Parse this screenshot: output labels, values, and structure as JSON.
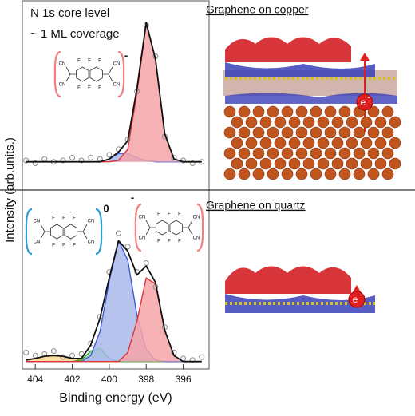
{
  "chart_data": [
    {
      "type": "line",
      "annotations": [
        "N 1s core level",
        "~ 1 ML coverage"
      ],
      "ylabel": "Intensity (arb.units.)",
      "x": [
        404.5,
        404,
        403.5,
        403,
        402.5,
        402,
        401.5,
        401,
        400.5,
        400,
        399.5,
        399,
        398.5,
        398,
        397.5,
        397,
        396.5,
        396,
        395.5,
        395
      ],
      "xlim": [
        404.7,
        394.6
      ],
      "ylim": [
        -0.2,
        1.15
      ],
      "series": [
        {
          "color": "#3b5bd9",
          "fill": "#a8b8ea",
          "values": [
            0,
            0,
            0,
            0,
            0,
            0,
            0,
            0,
            0,
            0.02,
            0.06,
            0.06,
            0.03,
            0.01,
            0,
            0,
            0,
            0,
            0,
            0
          ]
        },
        {
          "color": "#e0343a",
          "fill": "#f6a5a8",
          "values": [
            0,
            0,
            0,
            0,
            0,
            0,
            0,
            0,
            0,
            0,
            0.01,
            0.09,
            0.49,
            0.98,
            0.73,
            0.2,
            0.02,
            0,
            0,
            0
          ]
        },
        {
          "color": "#8a8a8a",
          "marker": "circle",
          "values": [
            0.01,
            -0.01,
            0.02,
            0,
            0.01,
            0.03,
            0.01,
            0.03,
            0.02,
            0.05,
            0.09,
            0.16,
            0.5,
            0.97,
            0.75,
            0.18,
            0.03,
            0.01,
            -0.01,
            0
          ]
        },
        {
          "color": "#111111",
          "values": [
            0,
            0,
            0,
            0,
            0,
            0,
            0,
            0,
            0,
            0.02,
            0.07,
            0.15,
            0.52,
            0.99,
            0.73,
            0.2,
            0.02,
            0,
            0,
            0
          ]
        }
      ]
    },
    {
      "type": "line",
      "xlabel": "Binding energy (eV)",
      "x": [
        404.5,
        404,
        403.5,
        403,
        402.5,
        402,
        401.5,
        401,
        400.5,
        400,
        399.5,
        399,
        398.5,
        398,
        397.5,
        397,
        396.5,
        396,
        395.5,
        395
      ],
      "xlim": [
        404.7,
        394.6
      ],
      "xticks": [
        404,
        402,
        400,
        398,
        396
      ],
      "ylim": [
        -0.05,
        1.15
      ],
      "series": [
        {
          "color": "#e0a020",
          "fill": "#f5d890",
          "values": [
            0.01,
            0.02,
            0.035,
            0.04,
            0.035,
            0.02,
            0.01,
            0,
            0,
            0,
            0,
            0,
            0,
            0,
            0,
            0,
            0,
            0,
            0,
            0
          ]
        },
        {
          "color": "#2eaa2e",
          "fill": "#a6dca6",
          "values": [
            0,
            0,
            0,
            0,
            0,
            0,
            0.01,
            0.07,
            0.09,
            0.02,
            0,
            0,
            0,
            0,
            0,
            0,
            0,
            0,
            0,
            0
          ]
        },
        {
          "color": "#3b5bd9",
          "fill": "#a8b8ea",
          "values": [
            0,
            0,
            0,
            0,
            0,
            0,
            0,
            0.04,
            0.2,
            0.54,
            0.81,
            0.68,
            0.31,
            0.08,
            0.01,
            0,
            0,
            0,
            0,
            0
          ]
        },
        {
          "color": "#e0343a",
          "fill": "#f6a5a8",
          "values": [
            0,
            0,
            0,
            0,
            0,
            0,
            0,
            0,
            0,
            0,
            0,
            0.06,
            0.27,
            0.56,
            0.52,
            0.21,
            0.04,
            0,
            0,
            0
          ]
        },
        {
          "color": "#8a8a8a",
          "marker": "circle",
          "values": [
            0.06,
            0.04,
            0.05,
            0.07,
            0.03,
            0.04,
            0.05,
            0.12,
            0.3,
            0.6,
            0.86,
            0.77,
            0.6,
            0.66,
            0.5,
            0.23,
            0.06,
            0.02,
            0.01,
            0.03
          ]
        },
        {
          "color": "#111111",
          "values": [
            0.01,
            0.02,
            0.035,
            0.04,
            0.035,
            0.02,
            0.02,
            0.11,
            0.29,
            0.56,
            0.81,
            0.74,
            0.58,
            0.64,
            0.53,
            0.21,
            0.04,
            0,
            0,
            0
          ]
        }
      ]
    }
  ],
  "molecules": [
    {
      "atoms": [
        "F",
        "F",
        "F",
        "F",
        "F",
        "F",
        "CN",
        "CN",
        "CN",
        "CN"
      ],
      "charge": "-",
      "bracket_color": "#f08080"
    },
    {
      "atoms": [
        "F",
        "F",
        "F",
        "F",
        "F",
        "F",
        "CN",
        "CN",
        "CN",
        "CN"
      ],
      "charge": "0",
      "bracket_color": "#2a9fd6"
    },
    {
      "atoms": [
        "F",
        "F",
        "F",
        "F",
        "F",
        "F",
        "CN",
        "CN",
        "CN",
        "CN"
      ],
      "charge": "-",
      "bracket_color": "#f08080"
    }
  ],
  "images": [
    {
      "title": "Graphene on copper",
      "electron": "e",
      "electron_charge": "-"
    },
    {
      "title": "Graphene on quartz",
      "electron": "e",
      "electron_charge": "-"
    }
  ]
}
